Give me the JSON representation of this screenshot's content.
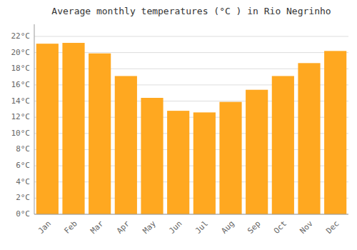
{
  "chart_data": {
    "type": "bar",
    "title": "Average monthly temperatures (°C ) in Rio Negrinho",
    "categories": [
      "Jan",
      "Feb",
      "Mar",
      "Apr",
      "May",
      "Jun",
      "Jul",
      "Aug",
      "Sep",
      "Oct",
      "Nov",
      "Dec"
    ],
    "values": [
      21.1,
      21.2,
      19.9,
      17.1,
      14.4,
      12.8,
      12.6,
      13.9,
      15.4,
      17.1,
      18.7,
      20.2
    ],
    "color": "#FFA820",
    "ylim": [
      0,
      23.5
    ],
    "yticks": [
      {
        "value": 0,
        "label": "0°C"
      },
      {
        "value": 2,
        "label": "2°C"
      },
      {
        "value": 4,
        "label": "4°C"
      },
      {
        "value": 6,
        "label": "6°C"
      },
      {
        "value": 8,
        "label": "8°C"
      },
      {
        "value": 10,
        "label": "10°C"
      },
      {
        "value": 12,
        "label": "12°C"
      },
      {
        "value": 14,
        "label": "14°C"
      },
      {
        "value": 16,
        "label": "16°C"
      },
      {
        "value": 18,
        "label": "18°C"
      },
      {
        "value": 20,
        "label": "20°C"
      },
      {
        "value": 22,
        "label": "22°C"
      }
    ],
    "grid": true
  }
}
